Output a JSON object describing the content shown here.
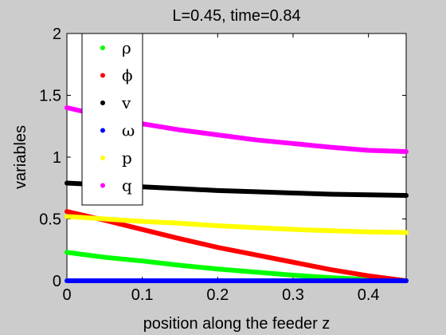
{
  "chart_data": {
    "type": "line",
    "title": "L=0.45, time=0.84",
    "xlabel": "position along the feeder z",
    "ylabel": "variables",
    "xlim": [
      0,
      0.45
    ],
    "ylim": [
      0,
      2
    ],
    "xticks": [
      "0",
      "0.1",
      "0.2",
      "0.3",
      "0.4"
    ],
    "xtick_values": [
      0,
      0.1,
      0.2,
      0.3,
      0.4
    ],
    "yticks": [
      "0",
      "0.5",
      "1",
      "1.5",
      "2"
    ],
    "ytick_values": [
      0,
      0.5,
      1,
      1.5,
      2
    ],
    "grid": false,
    "legend_position": "top-left",
    "series": [
      {
        "name": "ρ",
        "color": "#00ff00",
        "x": [
          0,
          0.05,
          0.1,
          0.15,
          0.2,
          0.25,
          0.3,
          0.35,
          0.4,
          0.45
        ],
        "values": [
          0.23,
          0.19,
          0.16,
          0.125,
          0.095,
          0.07,
          0.045,
          0.025,
          0.01,
          0.0
        ]
      },
      {
        "name": "ϕ",
        "color": "#ff0000",
        "x": [
          0,
          0.05,
          0.1,
          0.15,
          0.2,
          0.25,
          0.3,
          0.35,
          0.4,
          0.45
        ],
        "values": [
          0.56,
          0.49,
          0.415,
          0.34,
          0.27,
          0.21,
          0.15,
          0.09,
          0.04,
          0.0
        ]
      },
      {
        "name": "v",
        "color": "#000000",
        "x": [
          0,
          0.05,
          0.1,
          0.15,
          0.2,
          0.25,
          0.3,
          0.35,
          0.4,
          0.45
        ],
        "values": [
          0.79,
          0.775,
          0.76,
          0.745,
          0.73,
          0.72,
          0.71,
          0.7,
          0.695,
          0.69
        ]
      },
      {
        "name": "ω",
        "color": "#0000ff",
        "x": [
          0,
          0.05,
          0.1,
          0.15,
          0.2,
          0.25,
          0.3,
          0.35,
          0.4,
          0.45
        ],
        "values": [
          0,
          0,
          0,
          0,
          0,
          0,
          0,
          0,
          0,
          0
        ]
      },
      {
        "name": "p",
        "color": "#ffff00",
        "x": [
          0,
          0.05,
          0.1,
          0.15,
          0.2,
          0.25,
          0.3,
          0.35,
          0.4,
          0.45
        ],
        "values": [
          0.52,
          0.5,
          0.48,
          0.465,
          0.445,
          0.43,
          0.415,
          0.405,
          0.395,
          0.39
        ]
      },
      {
        "name": "q",
        "color": "#ff00ff",
        "x": [
          0,
          0.05,
          0.1,
          0.15,
          0.2,
          0.25,
          0.3,
          0.35,
          0.4,
          0.45
        ],
        "values": [
          1.4,
          1.33,
          1.27,
          1.22,
          1.18,
          1.14,
          1.11,
          1.08,
          1.055,
          1.045
        ]
      }
    ]
  }
}
